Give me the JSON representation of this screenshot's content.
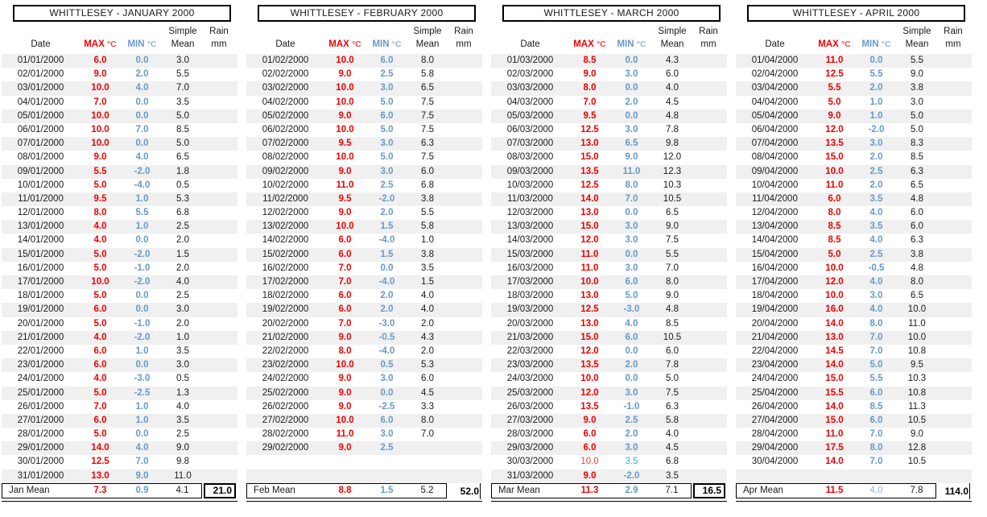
{
  "colors": {
    "max_red": "#F00000",
    "max_red_regular": "#FB4040",
    "min_blue": "#6699CC",
    "min_cyan": "#35B5C9",
    "min_lightblue": "#95B3D7",
    "row_shade": "#F0F0F0",
    "border_black": "#000000"
  },
  "columns": {
    "date_label": "Date",
    "max_label": "MAX",
    "max_unit": "°C",
    "min_label": "MIN",
    "min_unit": "°C",
    "mean_line1": "Simple",
    "mean_line2": "Mean",
    "rain_line1": "Rain",
    "rain_line2": "mm"
  },
  "months": [
    {
      "title": "WHITTLESEY -  JANUARY  2000",
      "mean_label": "Jan Mean",
      "mean": {
        "max": "7.3",
        "min": "0.9",
        "mean": "4.1",
        "rain": "21.0"
      },
      "mean_min_style": "bold",
      "rain_style": "box",
      "rows": [
        [
          "01/01/2000",
          "6.0",
          "0.0",
          "3.0"
        ],
        [
          "02/01/2000",
          "9.0",
          "2.0",
          "5.5"
        ],
        [
          "03/01/2000",
          "10.0",
          "4.0",
          "7.0"
        ],
        [
          "04/01/2000",
          "7.0",
          "0.0",
          "3.5"
        ],
        [
          "05/01/2000",
          "10.0",
          "0.0",
          "5.0"
        ],
        [
          "06/01/2000",
          "10.0",
          "7.0",
          "8.5"
        ],
        [
          "07/01/2000",
          "10.0",
          "0.0",
          "5.0"
        ],
        [
          "08/01/2000",
          "9.0",
          "4.0",
          "6.5"
        ],
        [
          "09/01/2000",
          "5.5",
          "-2.0",
          "1.8"
        ],
        [
          "10/01/2000",
          "5.0",
          "-4.0",
          "0.5"
        ],
        [
          "11/01/2000",
          "9.5",
          "1.0",
          "5.3"
        ],
        [
          "12/01/2000",
          "8.0",
          "5.5",
          "6.8"
        ],
        [
          "13/01/2000",
          "4.0",
          "1.0",
          "2.5"
        ],
        [
          "14/01/2000",
          "4.0",
          "0.0",
          "2.0"
        ],
        [
          "15/01/2000",
          "5.0",
          "-2.0",
          "1.5"
        ],
        [
          "16/01/2000",
          "5.0",
          "-1.0",
          "2.0"
        ],
        [
          "17/01/2000",
          "10.0",
          "-2.0",
          "4.0"
        ],
        [
          "18/01/2000",
          "5.0",
          "0.0",
          "2.5"
        ],
        [
          "19/01/2000",
          "6.0",
          "0.0",
          "3.0"
        ],
        [
          "20/01/2000",
          "5.0",
          "-1.0",
          "2.0"
        ],
        [
          "21/01/2000",
          "4.0",
          "-2.0",
          "1.0"
        ],
        [
          "22/01/2000",
          "6.0",
          "1.0",
          "3.5"
        ],
        [
          "23/01/2000",
          "6.0",
          "0.0",
          "3.0"
        ],
        [
          "24/01/2000",
          "4.0",
          "-3.0",
          "0.5"
        ],
        [
          "25/01/2000",
          "5.0",
          "-2.5",
          "1.3"
        ],
        [
          "26/01/2000",
          "7.0",
          "1.0",
          "4.0"
        ],
        [
          "27/01/2000",
          "6.0",
          "1.0",
          "3.5"
        ],
        [
          "28/01/2000",
          "5.0",
          "0.0",
          "2.5"
        ],
        [
          "29/01/2000",
          "14.0",
          "4.0",
          "9.0"
        ],
        [
          "30/01/2000",
          "12.5",
          "7.0",
          "9.8"
        ],
        [
          "31/01/2000",
          "13.0",
          "9.0",
          "11.0"
        ]
      ],
      "special_rows": []
    },
    {
      "title": "WHITTLESEY -  FEBRUARY  2000",
      "mean_label": "Feb Mean",
      "mean": {
        "max": "8.8",
        "min": "1.5",
        "mean": "5.2",
        "rain": "52.0"
      },
      "mean_min_style": "bold",
      "rain_style": "cursor",
      "rows": [
        [
          "01/02/2000",
          "10.0",
          "6.0",
          "8.0"
        ],
        [
          "02/02/2000",
          "9.0",
          "2.5",
          "5.8"
        ],
        [
          "03/02/2000",
          "10.0",
          "3.0",
          "6.5"
        ],
        [
          "04/02/2000",
          "10.0",
          "5.0",
          "7.5"
        ],
        [
          "05/02/2000",
          "9.0",
          "6.0",
          "7.5"
        ],
        [
          "06/02/2000",
          "10.0",
          "5.0",
          "7.5"
        ],
        [
          "07/02/2000",
          "9.5",
          "3.0",
          "6.3"
        ],
        [
          "08/02/2000",
          "10.0",
          "5.0",
          "7.5"
        ],
        [
          "09/02/2000",
          "9.0",
          "3.0",
          "6.0"
        ],
        [
          "10/02/2000",
          "11.0",
          "2.5",
          "6.8"
        ],
        [
          "11/02/2000",
          "9.5",
          "-2.0",
          "3.8"
        ],
        [
          "12/02/2000",
          "9.0",
          "2.0",
          "5.5"
        ],
        [
          "13/02/2000",
          "10.0",
          "1.5",
          "5.8"
        ],
        [
          "14/02/2000",
          "6.0",
          "-4.0",
          "1.0"
        ],
        [
          "15/02/2000",
          "6.0",
          "1.5",
          "3.8"
        ],
        [
          "16/02/2000",
          "7.0",
          "0.0",
          "3.5"
        ],
        [
          "17/02/2000",
          "7.0",
          "-4.0",
          "1.5"
        ],
        [
          "18/02/2000",
          "6.0",
          "2.0",
          "4.0"
        ],
        [
          "19/02/2000",
          "6.0",
          "2.0",
          "4.0"
        ],
        [
          "20/02/2000",
          "7.0",
          "-3.0",
          "2.0"
        ],
        [
          "21/02/2000",
          "9.0",
          "-0.5",
          "4.3"
        ],
        [
          "22/02/2000",
          "8.0",
          "-4.0",
          "2.0"
        ],
        [
          "23/02/2000",
          "10.0",
          "0.5",
          "5.3"
        ],
        [
          "24/02/2000",
          "9.0",
          "3.0",
          "6.0"
        ],
        [
          "25/02/2000",
          "9.0",
          "0.0",
          "4.5"
        ],
        [
          "26/02/2000",
          "9.0",
          "-2.5",
          "3.3"
        ],
        [
          "27/02/2000",
          "10.0",
          "6.0",
          "8.0"
        ],
        [
          "28/02/2000",
          "11.0",
          "3.0",
          "7.0"
        ],
        [
          "29/02/2000",
          "9.0",
          "2.5",
          ""
        ],
        [
          "",
          "",
          "",
          ""
        ],
        [
          "",
          "",
          "",
          ""
        ]
      ],
      "special_rows": []
    },
    {
      "title": "WHITTLESEY -  MARCH 2000",
      "mean_label": "Mar Mean",
      "mean": {
        "max": "11.3",
        "min": "2.9",
        "mean": "7.1",
        "rain": "16.5"
      },
      "mean_min_style": "bold",
      "rain_style": "box",
      "rows": [
        [
          "01/03/2000",
          "8.5",
          "0.0",
          "4.3"
        ],
        [
          "02/03/2000",
          "9.0",
          "3.0",
          "6.0"
        ],
        [
          "03/03/2000",
          "8.0",
          "0.0",
          "4.0"
        ],
        [
          "04/03/2000",
          "7.0",
          "2.0",
          "4.5"
        ],
        [
          "05/03/2000",
          "9.5",
          "0.0",
          "4.8"
        ],
        [
          "06/03/2000",
          "12.5",
          "3.0",
          "7.8"
        ],
        [
          "07/03/2000",
          "13.0",
          "6.5",
          "9.8"
        ],
        [
          "08/03/2000",
          "15.0",
          "9.0",
          "12.0"
        ],
        [
          "09/03/2000",
          "13.5",
          "11.0",
          "12.3"
        ],
        [
          "10/03/2000",
          "12.5",
          "8.0",
          "10.3"
        ],
        [
          "11/03/2000",
          "14.0",
          "7.0",
          "10.5"
        ],
        [
          "12/03/2000",
          "13.0",
          "0.0",
          "6.5"
        ],
        [
          "13/03/2000",
          "15.0",
          "3.0",
          "9.0"
        ],
        [
          "14/03/2000",
          "12.0",
          "3.0",
          "7.5"
        ],
        [
          "15/03/2000",
          "11.0",
          "0.0",
          "5.5"
        ],
        [
          "16/03/2000",
          "11.0",
          "3.0",
          "7.0"
        ],
        [
          "17/03/2000",
          "10.0",
          "6.0",
          "8.0"
        ],
        [
          "18/03/2000",
          "13.0",
          "5.0",
          "9.0"
        ],
        [
          "19/03/2000",
          "12.5",
          "-3.0",
          "4.8"
        ],
        [
          "20/03/2000",
          "13.0",
          "4.0",
          "8.5"
        ],
        [
          "21/03/2000",
          "15.0",
          "6.0",
          "10.5"
        ],
        [
          "22/03/2000",
          "12.0",
          "0.0",
          "6.0"
        ],
        [
          "23/03/2000",
          "13.5",
          "2.0",
          "7.8"
        ],
        [
          "24/03/2000",
          "10.0",
          "0.0",
          "5.0"
        ],
        [
          "25/03/2000",
          "12.0",
          "3.0",
          "7.5"
        ],
        [
          "26/03/2000",
          "13.5",
          "-1.0",
          "6.3"
        ],
        [
          "27/03/2000",
          "9.0",
          "2.5",
          "5.8"
        ],
        [
          "28/03/2000",
          "6.0",
          "2.0",
          "4.0"
        ],
        [
          "29/03/2000",
          "6.0",
          "3.0",
          "4.5"
        ],
        [
          "30/03/2000",
          "10.0",
          "3.5",
          "6.8"
        ],
        [
          "31/03/2000",
          "9.0",
          "-2.0",
          "3.5"
        ]
      ],
      "special_rows": [
        {
          "row_index": 29,
          "max_style": "regular",
          "min_style": "cyan"
        }
      ]
    },
    {
      "title": "WHITTLESEY -  APRIL 2000",
      "mean_label": "Apr Mean",
      "mean": {
        "max": "11.5",
        "min": "4.0",
        "mean": "7.8",
        "rain": "114.0"
      },
      "mean_min_style": "light",
      "rain_style": "cursor",
      "rows": [
        [
          "01/04/2000",
          "11.0",
          "0.0",
          "5.5"
        ],
        [
          "02/04/2000",
          "12.5",
          "5.5",
          "9.0"
        ],
        [
          "03/04/2000",
          "5.5",
          "2.0",
          "3.8"
        ],
        [
          "04/04/2000",
          "5.0",
          "1.0",
          "3.0"
        ],
        [
          "05/04/2000",
          "9.0",
          "1.0",
          "5.0"
        ],
        [
          "06/04/2000",
          "12.0",
          "-2.0",
          "5.0"
        ],
        [
          "07/04/2000",
          "13.5",
          "3.0",
          "8.3"
        ],
        [
          "08/04/2000",
          "15.0",
          "2.0",
          "8.5"
        ],
        [
          "09/04/2000",
          "10.0",
          "2.5",
          "6.3"
        ],
        [
          "10/04/2000",
          "11.0",
          "2.0",
          "6.5"
        ],
        [
          "11/04/2000",
          "6.0",
          "3.5",
          "4.8"
        ],
        [
          "12/04/2000",
          "8.0",
          "4.0",
          "6.0"
        ],
        [
          "13/04/2000",
          "8.5",
          "3.5",
          "6.0"
        ],
        [
          "14/04/2000",
          "8.5",
          "4.0",
          "6.3"
        ],
        [
          "15/04/2000",
          "5.0",
          "2.5",
          "3.8"
        ],
        [
          "16/04/2000",
          "10.0",
          "-0.5",
          "4.8"
        ],
        [
          "17/04/2000",
          "12.0",
          "4.0",
          "8.0"
        ],
        [
          "18/04/2000",
          "10.0",
          "3.0",
          "6.5"
        ],
        [
          "19/04/2000",
          "16.0",
          "4.0",
          "10.0"
        ],
        [
          "20/04/2000",
          "14.0",
          "8.0",
          "11.0"
        ],
        [
          "21/04/2000",
          "13.0",
          "7.0",
          "10.0"
        ],
        [
          "22/04/2000",
          "14.5",
          "7.0",
          "10.8"
        ],
        [
          "23/04/2000",
          "14.0",
          "5.0",
          "9.5"
        ],
        [
          "24/04/2000",
          "15.0",
          "5.5",
          "10.3"
        ],
        [
          "25/04/2000",
          "15.5",
          "6.0",
          "10.8"
        ],
        [
          "26/04/2000",
          "14.0",
          "8.5",
          "11.3"
        ],
        [
          "27/04/2000",
          "15.0",
          "6.0",
          "10.5"
        ],
        [
          "28/04/2000",
          "11.0",
          "7.0",
          "9.0"
        ],
        [
          "29/04/2000",
          "17.5",
          "8.0",
          "12.8"
        ],
        [
          "30/04/2000",
          "14.0",
          "7.0",
          "10.5"
        ],
        [
          "",
          "",
          "",
          ""
        ]
      ],
      "special_rows": []
    }
  ]
}
